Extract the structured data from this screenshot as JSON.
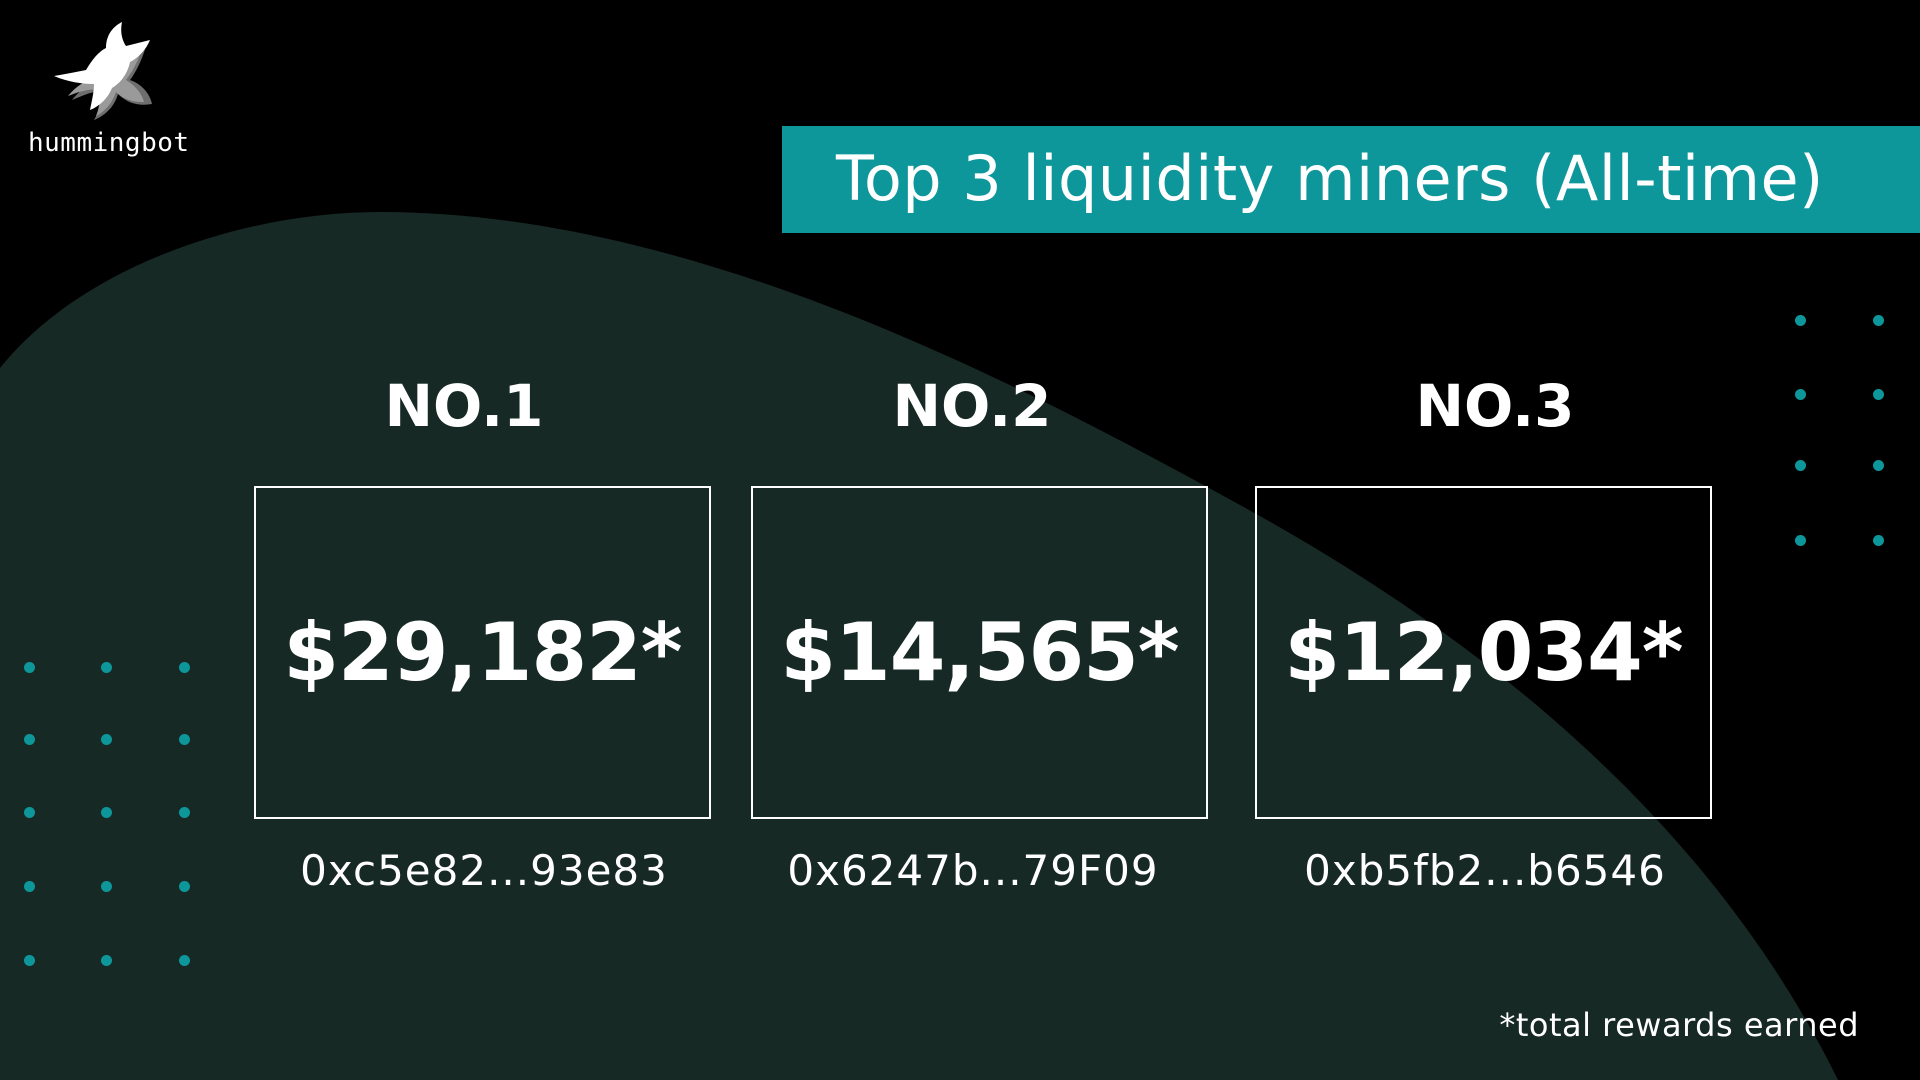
{
  "brand": {
    "name": "hummingbot",
    "logo_icon": "hummingbird-icon"
  },
  "title": "Top 3 liquidity miners (All-time)",
  "colors": {
    "background": "#000000",
    "blob": "#172925",
    "accent": "#0e979b",
    "text": "#ffffff"
  },
  "miners": [
    {
      "rank": "NO.1",
      "value": "$29,182*",
      "address": "0xc5e82...93e83"
    },
    {
      "rank": "NO.2",
      "value": "$14,565*",
      "address": "0x6247b...79F09"
    },
    {
      "rank": "NO.3",
      "value": "$12,034*",
      "address": "0xb5fb2...b6546"
    }
  ],
  "footnote": "*total rewards earned"
}
